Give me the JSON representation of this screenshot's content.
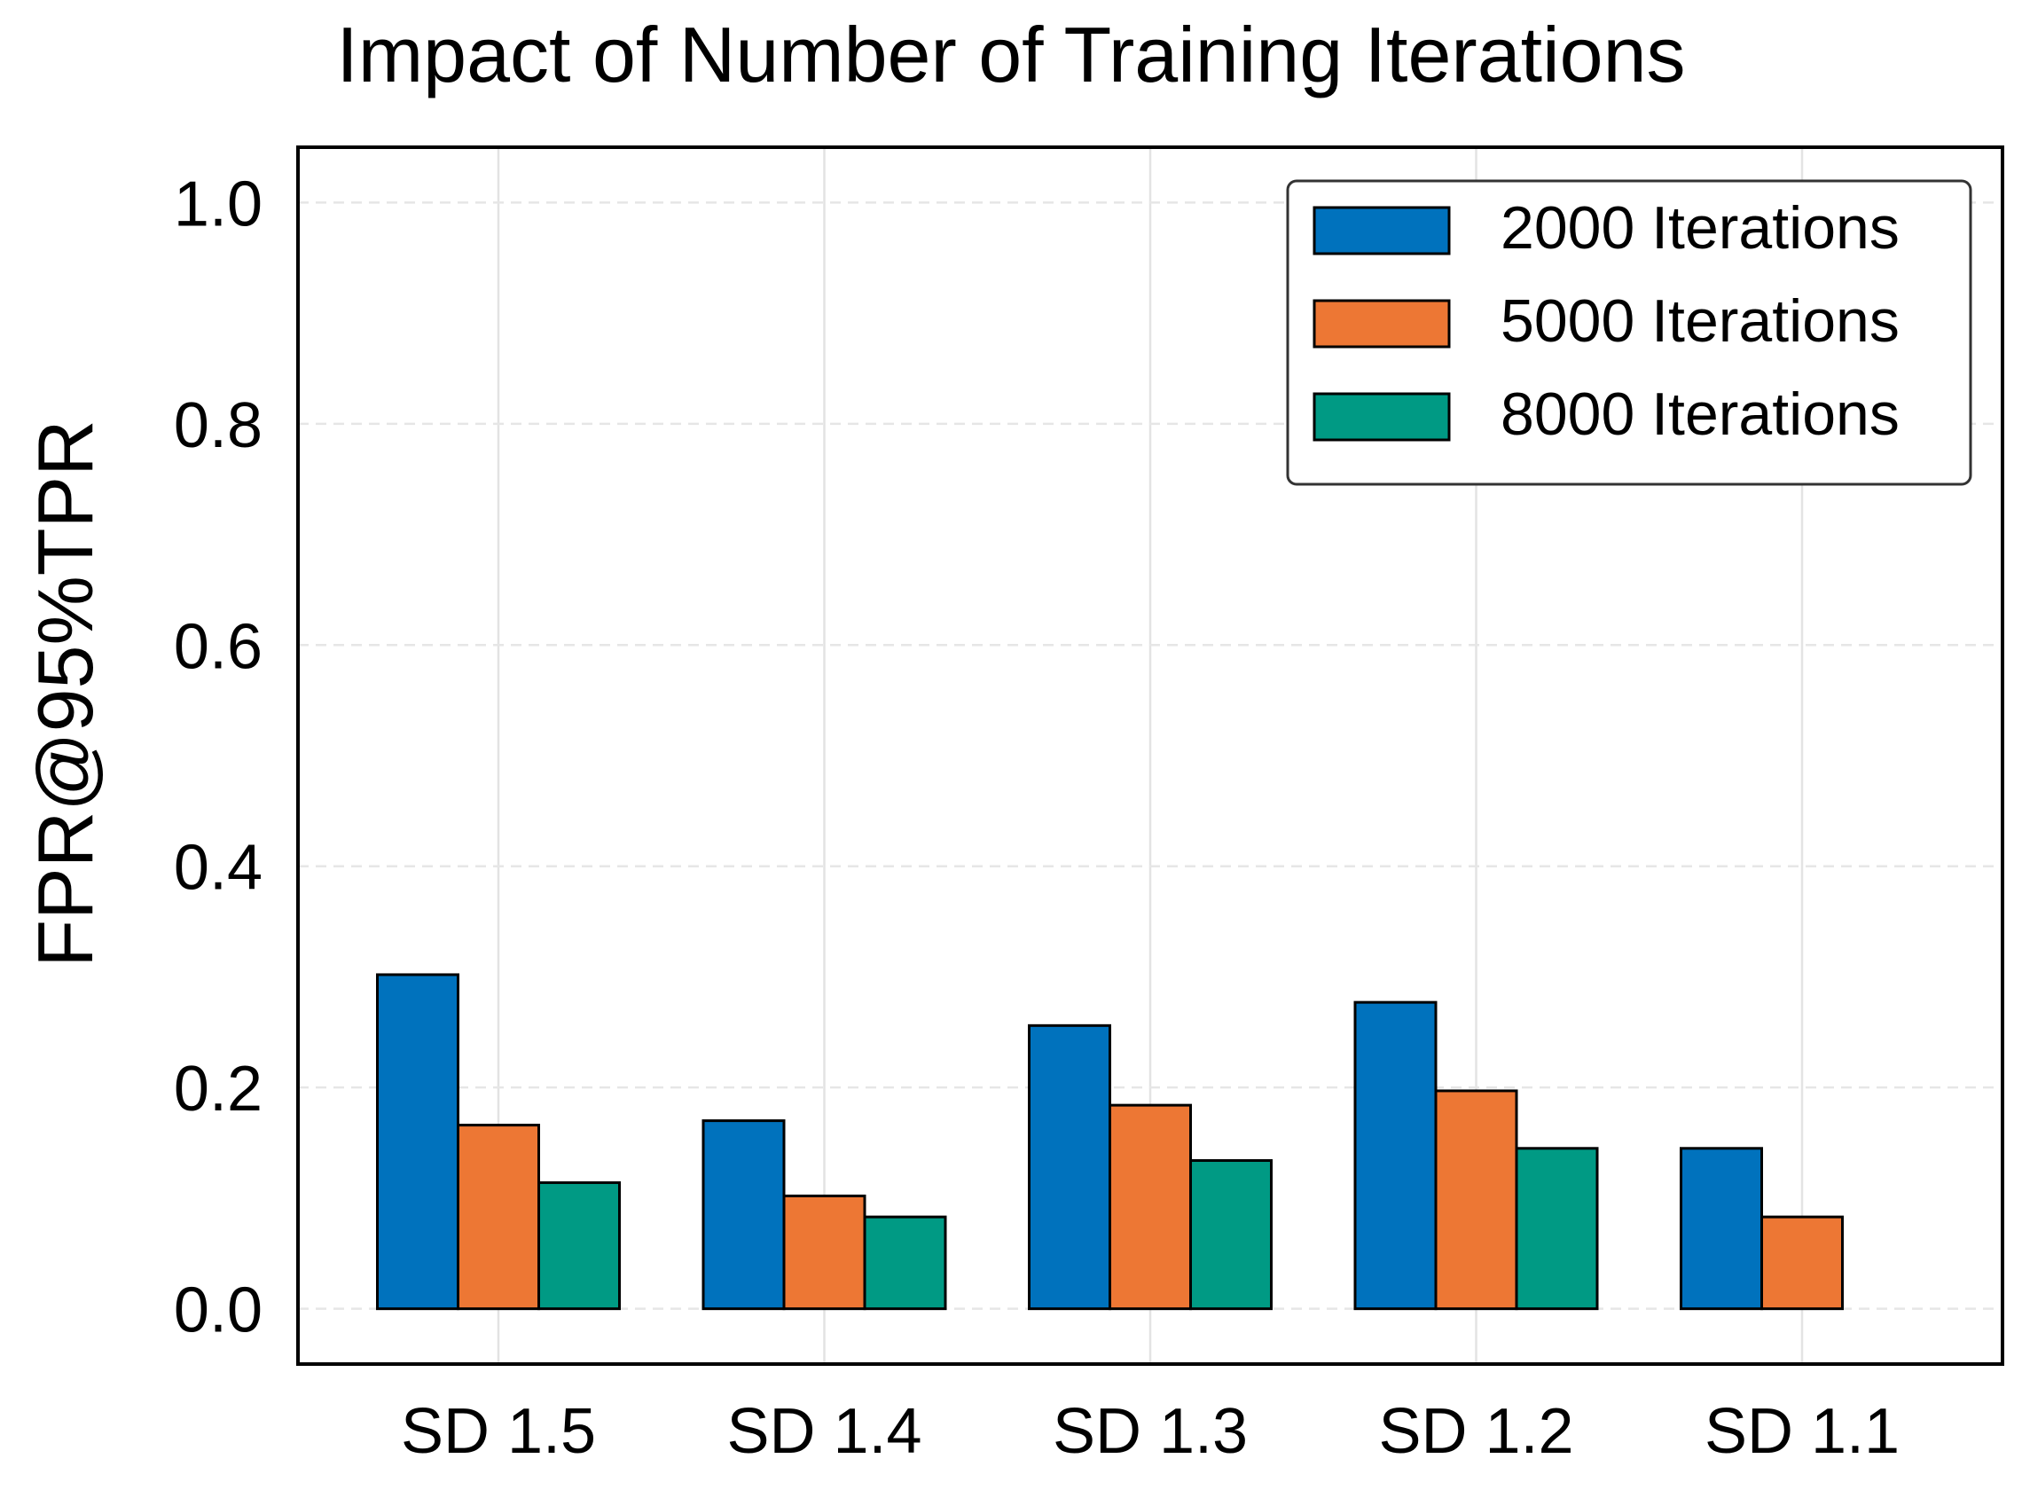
{
  "chart_data": {
    "type": "bar",
    "title": "Impact of Number of Training Iterations",
    "xlabel": "",
    "ylabel": "FPR@95%TPR",
    "categories": [
      "SD 1.5",
      "SD 1.4",
      "SD 1.3",
      "SD 1.2",
      "SD 1.1"
    ],
    "series": [
      {
        "name": "2000 Iterations",
        "color": "#0072bd",
        "values": [
          0.302,
          0.17,
          0.256,
          0.277,
          0.145
        ]
      },
      {
        "name": "5000 Iterations",
        "color": "#ed7734",
        "values": [
          0.166,
          0.102,
          0.184,
          0.197,
          0.083
        ]
      },
      {
        "name": "8000 Iterations",
        "color": "#009a84",
        "values": [
          0.114,
          0.083,
          0.134,
          0.145,
          0.0
        ]
      }
    ],
    "ylim": [
      -0.05,
      1.05
    ],
    "yticks": [
      "0.0",
      "0.2",
      "0.4",
      "0.6",
      "0.8",
      "1.0"
    ],
    "grid": true,
    "legend_position": "top-right"
  }
}
